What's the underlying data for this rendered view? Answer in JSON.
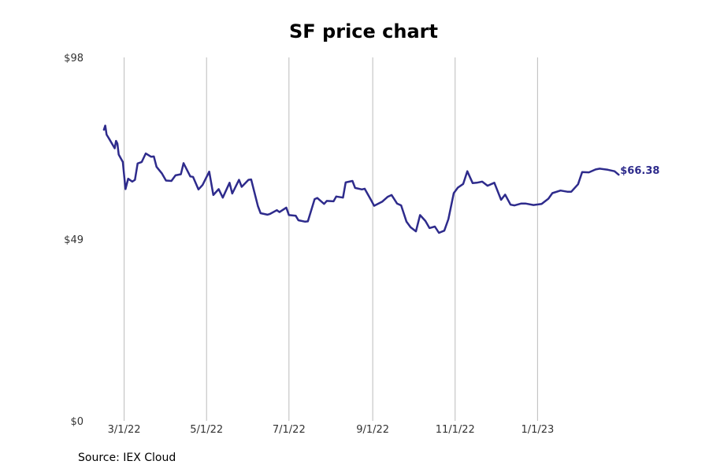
{
  "chart_data": {
    "type": "line",
    "title": "SF price chart",
    "source": "Source: IEX Cloud",
    "xlabel": "",
    "ylabel": "",
    "grid": "vertical",
    "line_color": "#2e2b8c",
    "y_ticks": [
      {
        "value": 0,
        "label": "$0"
      },
      {
        "value": 49,
        "label": "$49"
      },
      {
        "value": 98,
        "label": "$98"
      }
    ],
    "ylim": [
      0,
      98
    ],
    "x_ticks": [
      {
        "date": "2022-03-01",
        "label": "3/1/22"
      },
      {
        "date": "2022-05-01",
        "label": "5/1/22"
      },
      {
        "date": "2022-07-01",
        "label": "7/1/22"
      },
      {
        "date": "2022-09-01",
        "label": "9/1/22"
      },
      {
        "date": "2022-11-01",
        "label": "11/1/22"
      },
      {
        "date": "2023-01-01",
        "label": "1/1/23"
      }
    ],
    "xlim": [
      "2022-02-10",
      "2023-03-31"
    ],
    "last_value_label": "$66.38",
    "series": [
      {
        "x": [
          "2022-02-14",
          "2022-02-15",
          "2022-02-16",
          "2022-02-17",
          "2022-02-18",
          "2022-02-22",
          "2022-02-23",
          "2022-02-24",
          "2022-02-25",
          "2022-02-28",
          "2022-03-02",
          "2022-03-04",
          "2022-03-07",
          "2022-03-09",
          "2022-03-11",
          "2022-03-14",
          "2022-03-17",
          "2022-03-21",
          "2022-03-23",
          "2022-03-25",
          "2022-03-29",
          "2022-04-01",
          "2022-04-05",
          "2022-04-08",
          "2022-04-12",
          "2022-04-14",
          "2022-04-19",
          "2022-04-21",
          "2022-04-25",
          "2022-04-28",
          "2022-05-03",
          "2022-05-06",
          "2022-05-10",
          "2022-05-13",
          "2022-05-18",
          "2022-05-20",
          "2022-05-25",
          "2022-05-27",
          "2022-06-01",
          "2022-06-03",
          "2022-06-08",
          "2022-06-10",
          "2022-06-15",
          "2022-06-17",
          "2022-06-22",
          "2022-06-24",
          "2022-06-29",
          "2022-07-01",
          "2022-07-06",
          "2022-07-08",
          "2022-07-13",
          "2022-07-15",
          "2022-07-20",
          "2022-07-22",
          "2022-07-27",
          "2022-07-29",
          "2022-08-03",
          "2022-08-05",
          "2022-08-10",
          "2022-08-12",
          "2022-08-17",
          "2022-08-19",
          "2022-08-24",
          "2022-08-26",
          "2022-08-31",
          "2022-09-02",
          "2022-09-08",
          "2022-09-12",
          "2022-09-15",
          "2022-09-19",
          "2022-09-22",
          "2022-09-26",
          "2022-09-29",
          "2022-10-03",
          "2022-10-06",
          "2022-10-10",
          "2022-10-13",
          "2022-10-17",
          "2022-10-20",
          "2022-10-24",
          "2022-10-27",
          "2022-10-31",
          "2022-11-03",
          "2022-11-07",
          "2022-11-10",
          "2022-11-14",
          "2022-11-17",
          "2022-11-21",
          "2022-11-25",
          "2022-11-30",
          "2022-12-05",
          "2022-12-08",
          "2022-12-12",
          "2022-12-15",
          "2022-12-20",
          "2022-12-23",
          "2022-12-29",
          "2023-01-04",
          "2023-01-09",
          "2023-01-12",
          "2023-01-18",
          "2023-01-23",
          "2023-01-26",
          "2023-01-31",
          "2023-02-03",
          "2023-02-08",
          "2023-02-13",
          "2023-02-16",
          "2023-02-22",
          "2023-02-27",
          "2023-03-02"
        ],
        "y": [
          78.5,
          79.6,
          77.2,
          76.6,
          76.0,
          73.5,
          75.5,
          74.8,
          71.8,
          69.8,
          62.5,
          65.3,
          64.5,
          65.0,
          69.4,
          69.8,
          72.1,
          71.2,
          71.3,
          68.5,
          66.7,
          64.8,
          64.7,
          66.2,
          66.5,
          69.5,
          65.9,
          65.8,
          62.4,
          63.6,
          67.2,
          60.9,
          62.5,
          60.2,
          64.2,
          61.3,
          65.0,
          63.1,
          65.0,
          65.1,
          57.9,
          56.0,
          55.6,
          55.8,
          56.8,
          56.3,
          57.5,
          55.5,
          55.3,
          54.1,
          53.7,
          53.8,
          59.8,
          60.1,
          58.5,
          59.3,
          59.2,
          60.5,
          60.2,
          64.3,
          64.7,
          62.8,
          62.4,
          62.6,
          59.4,
          58.0,
          59.1,
          60.4,
          60.9,
          58.6,
          58.1,
          53.7,
          52.2,
          51.1,
          55.5,
          53.9,
          52.0,
          52.4,
          50.7,
          51.3,
          54.4,
          61.4,
          62.9,
          63.9,
          67.3,
          64.1,
          64.2,
          64.5,
          63.4,
          64.2,
          59.6,
          61.0,
          58.3,
          58.1,
          58.6,
          58.6,
          58.2,
          58.5,
          59.9,
          61.4,
          62.1,
          61.8,
          61.8,
          63.8,
          67.1,
          67.0,
          67.8,
          68.0,
          67.7,
          67.3,
          66.38
        ]
      }
    ]
  }
}
